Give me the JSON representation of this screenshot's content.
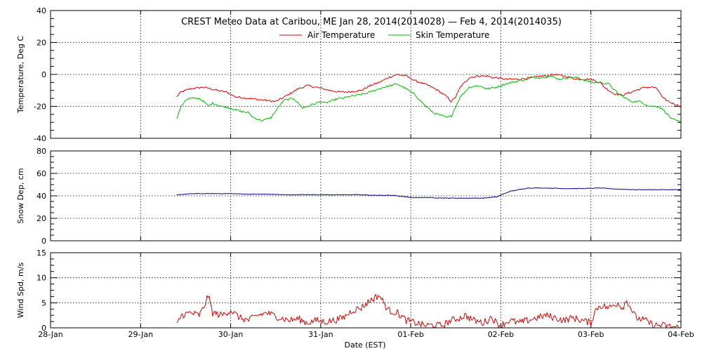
{
  "chart_data": {
    "type": "line",
    "title": "CREST Meteo Data at Caribou, ME   Jan 28, 2014(2014028) — Feb  4, 2014(2014035)",
    "xlabel": "Date (EST)",
    "x_ticks": [
      "28-Jan",
      "29-Jan",
      "30-Jan",
      "31-Jan",
      "01-Feb",
      "02-Feb",
      "03-Feb",
      "04-Feb"
    ],
    "x_range_days": [
      0,
      7
    ],
    "grid": true,
    "legend_position": "top-center",
    "panels": [
      {
        "ylabel": "Temperature, Deg C",
        "ylim": [
          -40,
          40
        ],
        "y_ticks": [
          -40,
          -20,
          0,
          20,
          40
        ],
        "series": [
          {
            "name": "Air Temperature",
            "color": "#dd0000",
            "x": [
              1.4,
              1.45,
              1.55,
              1.7,
              1.85,
              1.95,
              2.05,
              2.2,
              2.35,
              2.5,
              2.6,
              2.75,
              2.85,
              2.95,
              3.1,
              3.2,
              3.3,
              3.45,
              3.55,
              3.65,
              3.75,
              3.85,
              3.95,
              4.05,
              4.2,
              4.3,
              4.4,
              4.45,
              4.5,
              4.55,
              4.65,
              4.75,
              4.85,
              4.9,
              4.95,
              5.05,
              5.2,
              5.35,
              5.45,
              5.5,
              5.6,
              5.7,
              5.85,
              5.95,
              6.0,
              6.05,
              6.1,
              6.15,
              6.25,
              6.35,
              6.5,
              6.6,
              6.7,
              6.75,
              6.8,
              6.9,
              7.0
            ],
            "y": [
              -14,
              -11,
              -9,
              -8,
              -10,
              -11,
              -14,
              -15,
              -16,
              -17,
              -14,
              -9,
              -7,
              -8,
              -10,
              -11,
              -11,
              -10,
              -7,
              -5,
              -2,
              0,
              -1,
              -4,
              -7,
              -10,
              -14,
              -17,
              -14,
              -8,
              -2,
              -1,
              -1,
              -2,
              -2,
              -3,
              -3,
              -2,
              -1,
              -1,
              0,
              -1,
              -3,
              -3,
              -3,
              -4,
              -5,
              -8,
              -12,
              -13,
              -10,
              -8,
              -8,
              -10,
              -15,
              -18,
              -20
            ]
          },
          {
            "name": "Skin Temperature",
            "color": "#00bb00",
            "x": [
              1.4,
              1.45,
              1.5,
              1.55,
              1.65,
              1.7,
              1.75,
              1.8,
              1.9,
              2.0,
              2.1,
              2.2,
              2.25,
              2.3,
              2.35,
              2.45,
              2.55,
              2.6,
              2.7,
              2.75,
              2.8,
              2.9,
              3.0,
              3.05,
              3.2,
              3.25,
              3.3,
              3.4,
              3.5,
              3.6,
              3.7,
              3.85,
              3.95,
              4.05,
              4.15,
              4.25,
              4.3,
              4.4,
              4.45,
              4.5,
              4.55,
              4.65,
              4.75,
              4.85,
              4.95,
              5.05,
              5.2,
              5.3,
              5.35,
              5.45,
              5.55,
              5.65,
              5.75,
              5.85,
              6.0,
              6.1,
              6.2,
              6.3,
              6.45,
              6.55,
              6.65,
              6.75,
              6.8,
              6.9,
              7.0
            ],
            "y": [
              -28,
              -20,
              -16,
              -15,
              -15,
              -17,
              -20,
              -18,
              -20,
              -21,
              -23,
              -24,
              -27,
              -28,
              -29,
              -27,
              -19,
              -16,
              -15,
              -18,
              -21,
              -19,
              -17,
              -18,
              -15,
              -15,
              -14,
              -13,
              -12,
              -10,
              -8,
              -6,
              -9,
              -13,
              -19,
              -24,
              -25,
              -27,
              -26,
              -20,
              -14,
              -8,
              -7,
              -9,
              -8,
              -6,
              -4,
              -3,
              -2,
              -2,
              -1,
              -3,
              -2,
              -2,
              -5,
              -5,
              -6,
              -12,
              -17,
              -17,
              -20,
              -20,
              -22,
              -28,
              -30
            ]
          }
        ]
      },
      {
        "ylabel": "Snow Dep, cm",
        "ylim": [
          0,
          80
        ],
        "y_ticks": [
          0,
          20,
          40,
          60,
          80
        ],
        "series": [
          {
            "color": "#000090",
            "x": [
              1.4,
              1.6,
              1.8,
              2.0,
              2.2,
              2.4,
              2.6,
              2.8,
              3.0,
              3.2,
              3.4,
              3.6,
              3.8,
              4.0,
              4.2,
              4.4,
              4.6,
              4.8,
              4.95,
              5.1,
              5.3,
              5.5,
              5.7,
              5.9,
              6.1,
              6.3,
              6.5,
              6.7,
              6.9,
              7.0
            ],
            "y": [
              41,
              42,
              42,
              42,
              41.5,
              41.5,
              41,
              41,
              41,
              41,
              41,
              40.5,
              40.5,
              38.5,
              38.5,
              38,
              38,
              38,
              39,
              44,
              47,
              47,
              46.5,
              46.5,
              47,
              46,
              45.5,
              45.5,
              45.5,
              45.5
            ]
          }
        ]
      },
      {
        "ylabel": "Wind Spd, m/s",
        "ylim": [
          0,
          15
        ],
        "y_ticks": [
          0,
          5,
          10,
          15
        ],
        "series": [
          {
            "color": "#dd0000",
            "x": [
              1.4,
              1.45,
              1.55,
              1.65,
              1.7,
              1.75,
              1.8,
              1.9,
              2.0,
              2.1,
              2.2,
              2.3,
              2.4,
              2.55,
              2.65,
              2.75,
              2.85,
              2.95,
              3.05,
              3.15,
              3.25,
              3.35,
              3.45,
              3.55,
              3.65,
              3.75,
              3.85,
              3.95,
              4.05,
              4.15,
              4.25,
              4.35,
              4.45,
              4.55,
              4.6,
              4.7,
              4.8,
              4.85,
              4.9,
              4.95,
              5.0,
              5.1,
              5.2,
              5.3,
              5.4,
              5.5,
              5.6,
              5.7,
              5.8,
              5.9,
              6.0,
              6.05,
              6.1,
              6.2,
              6.3,
              6.35,
              6.4,
              6.5,
              6.6,
              6.7,
              6.8,
              6.9,
              7.0
            ],
            "y": [
              0.5,
              2.5,
              3,
              2.5,
              4,
              6.5,
              3,
              2.5,
              3.5,
              2,
              1.5,
              2.5,
              3,
              2,
              1.5,
              1.8,
              1,
              1.5,
              1.2,
              1.5,
              2,
              3.5,
              4,
              5.5,
              6.5,
              3.5,
              3,
              1.5,
              1,
              0.5,
              0.5,
              0.5,
              1.5,
              2,
              2.5,
              1.5,
              1,
              1.5,
              2.2,
              1,
              0.5,
              1.5,
              1,
              1.5,
              2,
              2.5,
              2,
              1.5,
              2,
              1.5,
              1,
              3.5,
              4.5,
              4,
              5,
              4,
              5.5,
              2,
              1.5,
              0.5,
              0.5,
              0.2,
              0
            ]
          }
        ]
      }
    ]
  }
}
